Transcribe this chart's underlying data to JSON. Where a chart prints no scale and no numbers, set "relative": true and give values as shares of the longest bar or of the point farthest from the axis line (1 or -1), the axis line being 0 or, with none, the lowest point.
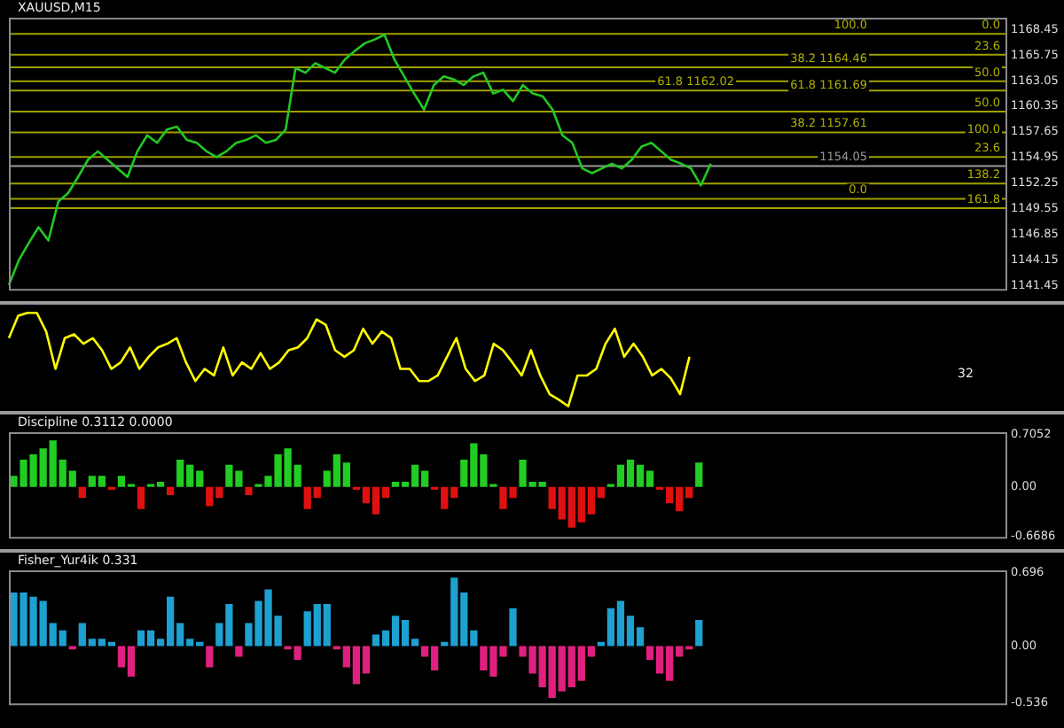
{
  "chart_data": [
    {
      "type": "line",
      "title": "XAUUSD,M15",
      "color": "#22c822",
      "categories": [
        null,
        null,
        null,
        null,
        null,
        null,
        null,
        null,
        null,
        null,
        null,
        null,
        null,
        null,
        null,
        null,
        null,
        null,
        null,
        null,
        null,
        null,
        null,
        null,
        null,
        null,
        null,
        null,
        null,
        null,
        null,
        null,
        null,
        null,
        null,
        null,
        null,
        null,
        null,
        null,
        null,
        null,
        null,
        null,
        null,
        null,
        null,
        null,
        null,
        null,
        null,
        null,
        null,
        null,
        null,
        null,
        null,
        null,
        null,
        null,
        null,
        null,
        null,
        null,
        null,
        null,
        null,
        null,
        null,
        null,
        null,
        null,
        null,
        null,
        null,
        null,
        null,
        null,
        null,
        null,
        null,
        null,
        null,
        null,
        null,
        null,
        null,
        null,
        null,
        null,
        null,
        null,
        null,
        null,
        null,
        null,
        null,
        null,
        null,
        null,
        null,
        null
      ],
      "values": [
        1141.5,
        1144.1,
        1145.9,
        1147.6,
        1146.2,
        1150.3,
        1151.2,
        1152.9,
        1154.7,
        1155.6,
        1154.7,
        1153.8,
        1152.9,
        1155.6,
        1157.3,
        1156.5,
        1157.9,
        1158.2,
        1156.8,
        1156.5,
        1155.6,
        1155.0,
        1155.6,
        1156.5,
        1156.8,
        1157.3,
        1156.5,
        1156.8,
        1157.9,
        1164.4,
        1163.9,
        1164.9,
        1164.4,
        1163.9,
        1165.3,
        1166.2,
        1167.0,
        1167.4,
        1167.9,
        1165.3,
        1163.5,
        1161.7,
        1160.0,
        1162.6,
        1163.5,
        1163.2,
        1162.6,
        1163.5,
        1163.9,
        1161.7,
        1162.1,
        1160.9,
        1162.6,
        1161.7,
        1161.4,
        1160.0,
        1157.3,
        1156.5,
        1153.8,
        1153.3,
        1153.8,
        1154.3,
        1153.8,
        1154.7,
        1156.1,
        1156.5,
        1155.6,
        1154.7,
        1154.3,
        1153.8,
        1152.0,
        1154.3,
        null,
        null,
        null,
        null,
        null,
        null,
        null,
        null,
        null,
        null,
        null,
        null,
        null,
        null,
        null,
        null,
        null,
        null,
        null,
        null,
        null,
        null,
        null,
        null,
        null,
        null,
        null,
        null,
        null,
        null
      ],
      "ylim": [
        1140.9,
        1169.7
      ],
      "yticks": [
        1168.45,
        1165.75,
        1163.05,
        1160.35,
        1157.65,
        1154.95,
        1152.25,
        1149.55,
        1146.85,
        1144.15,
        1141.45
      ],
      "ref_lines": [
        {
          "axis": "y",
          "value": 1168.0,
          "color": "#a0a000"
        },
        {
          "axis": "y",
          "value": 1165.8,
          "color": "#a0a000"
        },
        {
          "axis": "y",
          "value": 1164.46,
          "color": "#a0a000"
        },
        {
          "axis": "y",
          "value": 1163.0,
          "color": "#a0a000"
        },
        {
          "axis": "y",
          "value": 1162.02,
          "color": "#a0a000"
        },
        {
          "axis": "y",
          "value": 1159.8,
          "color": "#a0a000"
        },
        {
          "axis": "y",
          "value": 1157.61,
          "color": "#a0a000"
        },
        {
          "axis": "y",
          "value": 1155.0,
          "color": "#a0a000"
        },
        {
          "axis": "y",
          "value": 1154.05,
          "label": "1154.05",
          "color": "#9a9a9a"
        },
        {
          "axis": "y",
          "value": 1152.2,
          "color": "#a0a000"
        },
        {
          "axis": "y",
          "value": 1150.6,
          "color": "#a0a000"
        },
        {
          "axis": "y",
          "value": 1149.6,
          "color": "#a0a000"
        }
      ],
      "annotations": [
        {
          "text": "0.0",
          "y": 1168.0
        },
        {
          "text": "23.6",
          "y": 1165.8
        },
        {
          "text": "38.2 1164.46",
          "y": 1164.46
        },
        {
          "text": "50.0",
          "y": 1163.0
        },
        {
          "text": "61.8 1161.69",
          "y": 1161.69
        },
        {
          "text": "100.0",
          "y": 1157.0
        },
        {
          "text": "138.2",
          "y": 1152.2
        },
        {
          "text": "161.8",
          "y": 1149.6
        },
        {
          "text": "100.0",
          "y": 1168.0
        },
        {
          "text": "61.8 1162.02",
          "y": 1162.02
        },
        {
          "text": "50.0",
          "y": 1159.8
        },
        {
          "text": "38.2 1157.61",
          "y": 1157.61
        },
        {
          "text": "23.6",
          "y": 1155.0
        },
        {
          "text": "0.0",
          "y": 1150.6
        }
      ]
    },
    {
      "type": "line",
      "relative": true,
      "color": "#ffff00",
      "annotations": [
        "32"
      ],
      "categories": [
        null,
        null,
        null,
        null,
        null,
        null,
        null,
        null,
        null,
        null,
        null,
        null,
        null,
        null,
        null,
        null,
        null,
        null,
        null,
        null,
        null,
        null,
        null,
        null,
        null,
        null,
        null,
        null,
        null,
        null,
        null,
        null,
        null,
        null,
        null,
        null,
        null,
        null,
        null,
        null,
        null,
        null,
        null,
        null,
        null,
        null,
        null,
        null,
        null,
        null,
        null,
        null,
        null,
        null,
        null,
        null,
        null,
        null,
        null,
        null,
        null,
        null,
        null,
        null,
        null,
        null,
        null,
        null,
        null,
        null,
        null,
        null,
        null,
        null,
        null,
        null,
        null,
        null,
        null,
        null,
        null,
        null,
        null,
        null,
        null,
        null,
        null,
        null,
        null,
        null,
        null,
        null,
        null,
        null,
        null,
        null,
        null,
        null,
        null,
        null,
        null,
        null
      ],
      "values": [
        0.73,
        0.97,
        1.0,
        1.0,
        0.8,
        0.4,
        0.73,
        0.77,
        0.67,
        0.73,
        0.6,
        0.4,
        0.47,
        0.63,
        0.4,
        0.53,
        0.63,
        0.67,
        0.73,
        0.47,
        0.27,
        0.4,
        0.33,
        0.63,
        0.33,
        0.47,
        0.4,
        0.57,
        0.4,
        0.47,
        0.6,
        0.63,
        0.73,
        0.93,
        0.87,
        0.6,
        0.53,
        0.6,
        0.83,
        0.67,
        0.8,
        0.73,
        0.4,
        0.4,
        0.27,
        0.27,
        0.33,
        0.53,
        0.73,
        0.4,
        0.27,
        0.33,
        0.67,
        0.6,
        0.47,
        0.33,
        0.6,
        0.33,
        0.13,
        0.07,
        0.0,
        0.33,
        0.33,
        0.4,
        0.67,
        0.83,
        0.53,
        0.67,
        0.53,
        0.33,
        0.4,
        0.3,
        0.13,
        0.53,
        null,
        null,
        null,
        null,
        null,
        null,
        null,
        null,
        null,
        null,
        null,
        null,
        null,
        null,
        null,
        null,
        null,
        null,
        null,
        null,
        null,
        null,
        null,
        null,
        null,
        null,
        null,
        null
      ]
    },
    {
      "type": "bar",
      "title": "Discipline 0.3112 0.0000",
      "stacked": true,
      "categories": [
        null,
        null,
        null,
        null,
        null,
        null,
        null,
        null,
        null,
        null,
        null,
        null,
        null,
        null,
        null,
        null,
        null,
        null,
        null,
        null,
        null,
        null,
        null,
        null,
        null,
        null,
        null,
        null,
        null,
        null,
        null,
        null,
        null,
        null,
        null,
        null,
        null,
        null,
        null,
        null,
        null,
        null,
        null,
        null,
        null,
        null,
        null,
        null,
        null,
        null,
        null,
        null,
        null,
        null,
        null,
        null,
        null,
        null,
        null,
        null,
        null,
        null,
        null,
        null,
        null,
        null,
        null,
        null,
        null,
        null,
        null,
        null,
        null,
        null,
        null,
        null,
        null,
        null,
        null,
        null,
        null,
        null,
        null,
        null,
        null,
        null,
        null,
        null,
        null,
        null,
        null,
        null,
        null,
        null,
        null,
        null,
        null,
        null,
        null,
        null,
        null,
        null
      ],
      "ylim": [
        -0.7,
        0.74
      ],
      "yticks": [
        0.7052,
        {
          "value": 0,
          "label": "0.00"
        },
        -0.6686
      ],
      "series": [
        {
          "color": "#22cc22",
          "values": [
            0.15,
            0.37,
            0.44,
            0.52,
            0.63,
            0.37,
            0.22,
            null,
            0.15,
            0.15,
            null,
            0.15,
            0.04,
            null,
            0.04,
            0.07,
            null,
            0.37,
            0.3,
            0.22,
            null,
            null,
            0.3,
            0.22,
            null,
            0.04,
            0.15,
            0.44,
            0.52,
            0.3,
            null,
            null,
            0.22,
            0.44,
            0.33,
            null,
            null,
            null,
            null,
            0.07,
            0.07,
            0.3,
            0.22,
            null,
            null,
            null,
            0.37,
            0.59,
            0.44,
            0.04,
            null,
            null,
            0.37,
            0.07,
            0.07,
            null,
            null,
            null,
            null,
            null,
            null,
            0.04,
            0.3,
            0.37,
            0.3,
            0.22,
            null,
            null,
            null,
            null,
            0.33,
            null,
            null,
            null,
            null,
            null,
            null,
            null,
            null,
            null,
            null,
            null,
            null,
            null,
            null,
            null,
            null,
            null,
            null,
            null,
            null,
            null,
            null,
            null,
            null,
            null,
            null,
            null,
            null,
            null,
            null,
            null
          ]
        },
        {
          "color": "#e01010",
          "values": [
            null,
            null,
            null,
            null,
            null,
            null,
            null,
            -0.15,
            null,
            null,
            -0.04,
            null,
            null,
            -0.3,
            null,
            null,
            -0.11,
            null,
            null,
            null,
            -0.26,
            -0.15,
            null,
            null,
            -0.11,
            null,
            null,
            null,
            null,
            null,
            -0.3,
            -0.15,
            null,
            null,
            null,
            -0.04,
            -0.22,
            -0.37,
            -0.15,
            null,
            null,
            null,
            null,
            -0.04,
            -0.3,
            -0.15,
            null,
            null,
            null,
            null,
            -0.3,
            -0.15,
            null,
            null,
            null,
            -0.3,
            -0.44,
            -0.55,
            -0.48,
            -0.37,
            -0.15,
            null,
            null,
            null,
            null,
            null,
            -0.04,
            -0.22,
            -0.33,
            -0.15,
            null,
            null,
            null,
            null,
            null,
            null,
            null,
            null,
            null,
            null,
            null,
            null,
            null,
            null,
            null,
            null,
            null,
            null,
            null,
            null,
            null,
            null,
            null,
            null,
            null,
            null,
            null,
            null,
            null,
            null,
            null,
            null
          ]
        }
      ]
    },
    {
      "type": "bar",
      "title": "Fisher_Yur4ik 0.331",
      "stacked": true,
      "categories": [
        null,
        null,
        null,
        null,
        null,
        null,
        null,
        null,
        null,
        null,
        null,
        null,
        null,
        null,
        null,
        null,
        null,
        null,
        null,
        null,
        null,
        null,
        null,
        null,
        null,
        null,
        null,
        null,
        null,
        null,
        null,
        null,
        null,
        null,
        null,
        null,
        null,
        null,
        null,
        null,
        null,
        null,
        null,
        null,
        null,
        null,
        null,
        null,
        null,
        null,
        null,
        null,
        null,
        null,
        null,
        null,
        null,
        null,
        null,
        null,
        null,
        null,
        null,
        null,
        null,
        null,
        null,
        null,
        null,
        null,
        null,
        null,
        null,
        null,
        null,
        null,
        null,
        null,
        null,
        null,
        null,
        null,
        null,
        null,
        null,
        null,
        null,
        null,
        null,
        null,
        null,
        null,
        null,
        null,
        null,
        null,
        null,
        null,
        null,
        null,
        null,
        null
      ],
      "ylim": [
        -0.56,
        0.72
      ],
      "yticks": [
        0.696,
        {
          "value": 0,
          "label": "0.00"
        },
        -0.536
      ],
      "series": [
        {
          "color": "#1ea0d0",
          "values": [
            0.51,
            0.51,
            0.47,
            0.43,
            0.22,
            0.15,
            null,
            0.22,
            0.07,
            0.07,
            0.04,
            null,
            null,
            0.15,
            0.15,
            0.07,
            0.47,
            0.22,
            0.07,
            0.04,
            null,
            0.22,
            0.4,
            null,
            0.22,
            0.43,
            0.54,
            0.29,
            null,
            null,
            0.33,
            0.4,
            0.4,
            null,
            null,
            null,
            null,
            0.11,
            0.15,
            0.29,
            0.25,
            0.07,
            null,
            null,
            0.04,
            0.65,
            0.51,
            0.15,
            null,
            null,
            null,
            0.36,
            null,
            null,
            null,
            null,
            null,
            null,
            null,
            null,
            0.04,
            0.36,
            0.43,
            0.29,
            0.18,
            null,
            null,
            null,
            null,
            null,
            0.25,
            null,
            null,
            null,
            null,
            null,
            null,
            null,
            null,
            null,
            null,
            null,
            null,
            null,
            null,
            null,
            null,
            null,
            null,
            null,
            null,
            null,
            null,
            null,
            null,
            null,
            null,
            null,
            null,
            null,
            null,
            null
          ]
        },
        {
          "color": "#e0207f",
          "values": [
            null,
            null,
            null,
            null,
            null,
            null,
            -0.03,
            null,
            null,
            null,
            null,
            -0.2,
            -0.29,
            null,
            null,
            null,
            null,
            null,
            null,
            null,
            -0.2,
            null,
            null,
            -0.1,
            null,
            null,
            null,
            null,
            -0.03,
            -0.13,
            null,
            null,
            null,
            -0.03,
            -0.2,
            -0.36,
            -0.26,
            null,
            null,
            null,
            null,
            null,
            -0.1,
            -0.23,
            null,
            null,
            null,
            null,
            -0.23,
            -0.29,
            -0.1,
            null,
            -0.1,
            -0.26,
            -0.39,
            -0.49,
            -0.43,
            -0.39,
            -0.33,
            -0.1,
            null,
            null,
            null,
            null,
            null,
            -0.13,
            -0.26,
            -0.33,
            -0.1,
            -0.03,
            null,
            null,
            null,
            null,
            null,
            null,
            null,
            null,
            null,
            null,
            null,
            null,
            null,
            null,
            null,
            null,
            null,
            null,
            null,
            null,
            null,
            null,
            null,
            null,
            null,
            null,
            null,
            null,
            null,
            null,
            null,
            null
          ]
        }
      ]
    }
  ]
}
